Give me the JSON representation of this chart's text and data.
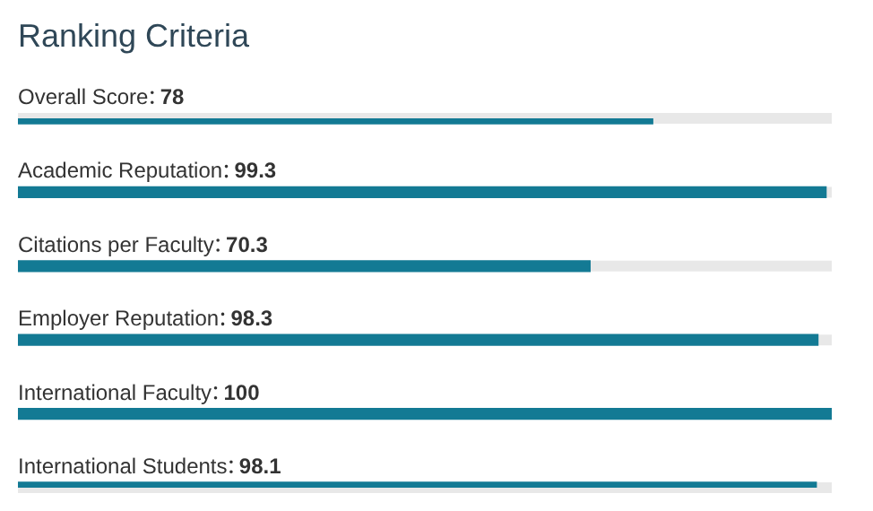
{
  "chart_data": {
    "type": "bar",
    "orientation": "horizontal",
    "title": "Ranking Criteria",
    "categories": [
      "Overall Score",
      "Academic Reputation",
      "Citations per Faculty",
      "Employer Reputation",
      "International Faculty",
      "International Students"
    ],
    "values": [
      78,
      99.3,
      70.3,
      98.3,
      100,
      98.1
    ],
    "color": "#137a94",
    "data_labels": true,
    "tick_labels": false,
    "legend": false
  }
}
